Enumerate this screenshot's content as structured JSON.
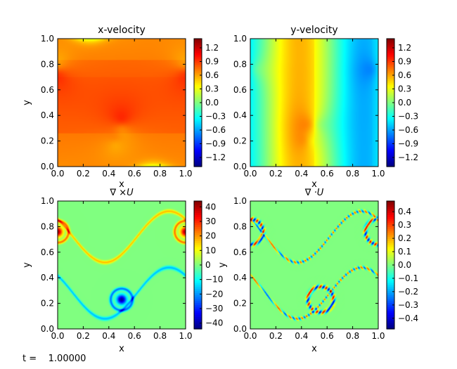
{
  "chart_data": [
    {
      "type": "heatmap",
      "title": "x-velocity",
      "xlabel": "x",
      "ylabel": "y",
      "xlim": [
        0.0,
        1.0
      ],
      "ylim": [
        0.0,
        1.0
      ],
      "x_ticks": [
        "0.0",
        "0.2",
        "0.4",
        "0.6",
        "0.8",
        "1.0"
      ],
      "y_ticks": [
        "0.0",
        "0.2",
        "0.4",
        "0.6",
        "0.8",
        "1.0"
      ],
      "colorbar": {
        "range": [
          -1.4,
          1.4
        ],
        "ticks": [
          1.2,
          0.9,
          0.6,
          0.3,
          0.0,
          -0.3,
          -0.6,
          -0.9,
          -1.2
        ],
        "tick_labels": [
          "1.2",
          "0.9",
          "0.6",
          "0.3",
          "0.0",
          "−0.3",
          "−0.6",
          "−0.9",
          "−1.2"
        ]
      },
      "colormap": "jet",
      "field": "u",
      "grid": false
    },
    {
      "type": "heatmap",
      "title": "y-velocity",
      "xlabel": "x",
      "ylabel": "",
      "xlim": [
        0.0,
        1.0
      ],
      "ylim": [
        0.0,
        1.0
      ],
      "x_ticks": [
        "0.0",
        "0.2",
        "0.4",
        "0.6",
        "0.8",
        "1.0"
      ],
      "y_ticks": [
        "0.0",
        "0.2",
        "0.4",
        "0.6",
        "0.8",
        "1.0"
      ],
      "colorbar": {
        "range": [
          -1.4,
          1.4
        ],
        "ticks": [
          1.2,
          0.9,
          0.6,
          0.3,
          0.0,
          -0.3,
          -0.6,
          -0.9,
          -1.2
        ],
        "tick_labels": [
          "1.2",
          "0.9",
          "0.6",
          "0.3",
          "0.0",
          "−0.3",
          "−0.6",
          "−0.9",
          "−1.2"
        ]
      },
      "colormap": "jet",
      "field": "v",
      "grid": false
    },
    {
      "type": "heatmap",
      "title": "∇ ×U",
      "xlabel": "x",
      "ylabel": "y",
      "xlim": [
        0.0,
        1.0
      ],
      "ylim": [
        0.0,
        1.0
      ],
      "x_ticks": [
        "0.0",
        "0.2",
        "0.4",
        "0.6",
        "0.8",
        "1.0"
      ],
      "y_ticks": [
        "0.0",
        "0.2",
        "0.4",
        "0.6",
        "0.8",
        "1.0"
      ],
      "colorbar": {
        "range": [
          -44,
          44
        ],
        "ticks": [
          40,
          30,
          20,
          10,
          0,
          -10,
          -20,
          -30,
          -40
        ],
        "tick_labels": [
          "40",
          "30",
          "20",
          "10",
          "0",
          "−10",
          "−20",
          "−30",
          "−40"
        ]
      },
      "colormap": "jet",
      "field": "curl",
      "grid": false
    },
    {
      "type": "heatmap",
      "title": "∇ ·U",
      "xlabel": "x",
      "ylabel": "y",
      "xlim": [
        0.0,
        1.0
      ],
      "ylim": [
        0.0,
        1.0
      ],
      "x_ticks": [
        "0.0",
        "0.2",
        "0.4",
        "0.6",
        "0.8",
        "1.0"
      ],
      "y_ticks": [
        "0.0",
        "0.2",
        "0.4",
        "0.6",
        "0.8",
        "1.0"
      ],
      "colorbar": {
        "range": [
          -0.48,
          0.48
        ],
        "ticks": [
          0.4,
          0.3,
          0.2,
          0.1,
          0.0,
          -0.1,
          -0.2,
          -0.3,
          -0.4
        ],
        "tick_labels": [
          "0.4",
          "0.3",
          "0.2",
          "0.1",
          "0.0",
          "−0.1",
          "−0.2",
          "−0.3",
          "−0.4"
        ]
      },
      "colormap": "jet",
      "field": "div",
      "grid": false
    }
  ],
  "footer": {
    "time_label": "t =    1.00000"
  }
}
